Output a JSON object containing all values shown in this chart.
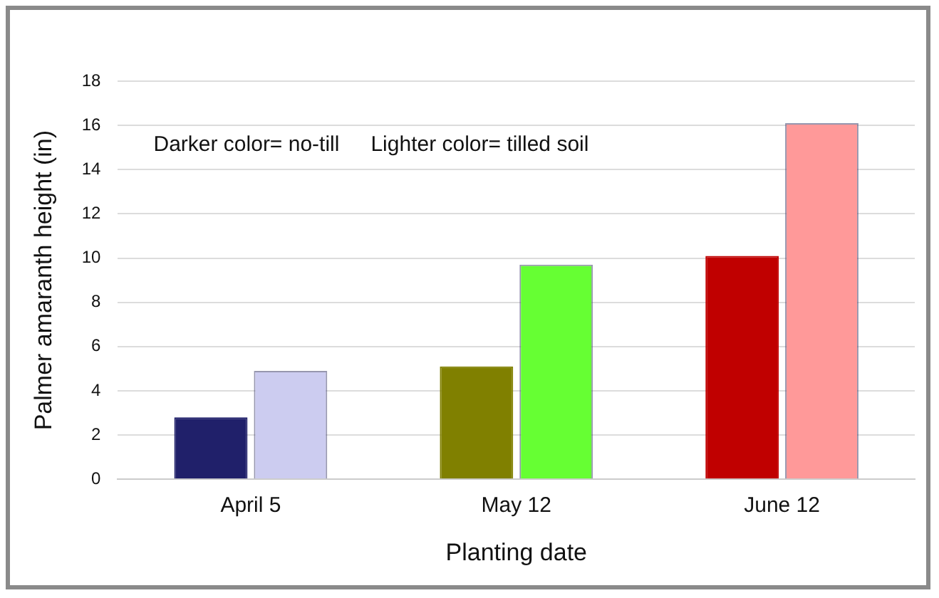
{
  "chart_data": {
    "type": "bar",
    "xlabel": "Planting date",
    "ylabel": "Palmer amaranth height (in)",
    "categories": [
      "April 5",
      "May 12",
      "June 12"
    ],
    "series": [
      {
        "colors": [
          "#20206a",
          "#808000",
          "#c00000"
        ],
        "values": [
          2.8,
          5.1,
          10.1
        ]
      },
      {
        "colors": [
          "#ccccf0",
          "#66ff33",
          "#ff9999"
        ],
        "values": [
          4.9,
          9.7,
          16.1
        ]
      }
    ],
    "ylim": [
      0,
      18
    ],
    "yticks": [
      0,
      2,
      4,
      6,
      8,
      10,
      12,
      14,
      16,
      18
    ],
    "grid": "y",
    "legend": false,
    "annotations": [
      "Darker color= no-till",
      "Lighter color= tilled soil"
    ]
  }
}
